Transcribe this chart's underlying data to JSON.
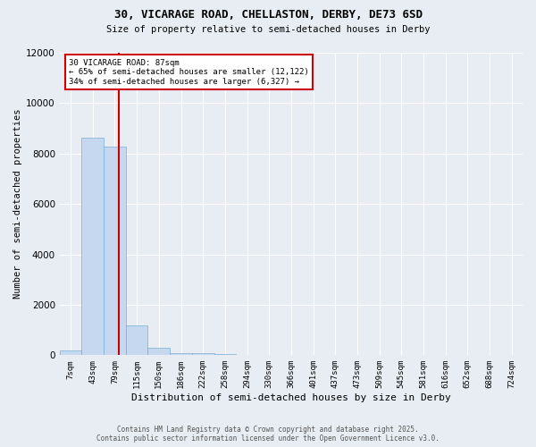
{
  "title_line1": "30, VICARAGE ROAD, CHELLASTON, DERBY, DE73 6SD",
  "title_line2": "Size of property relative to semi-detached houses in Derby",
  "xlabel": "Distribution of semi-detached houses by size in Derby",
  "ylabel": "Number of semi-detached properties",
  "categories": [
    "7sqm",
    "43sqm",
    "79sqm",
    "115sqm",
    "150sqm",
    "186sqm",
    "222sqm",
    "258sqm",
    "294sqm",
    "330sqm",
    "366sqm",
    "401sqm",
    "437sqm",
    "473sqm",
    "509sqm",
    "545sqm",
    "581sqm",
    "616sqm",
    "652sqm",
    "688sqm",
    "724sqm"
  ],
  "values": [
    200,
    8620,
    8270,
    1200,
    310,
    100,
    80,
    60,
    0,
    0,
    0,
    0,
    0,
    0,
    0,
    0,
    0,
    0,
    0,
    0,
    0
  ],
  "bar_color": "#c5d8ef",
  "bar_edge_color": "#7aadd4",
  "ylim": [
    0,
    12000
  ],
  "yticks": [
    0,
    2000,
    4000,
    6000,
    8000,
    10000,
    12000
  ],
  "red_line_color": "#cc0000",
  "red_line_x": 2.18,
  "annotation_title": "30 VICARAGE ROAD: 87sqm",
  "annotation_line1": "← 65% of semi-detached houses are smaller (12,122)",
  "annotation_line2": "34% of semi-detached houses are larger (6,327) →",
  "annotation_box_color": "#ffffff",
  "annotation_box_edge": "#cc0000",
  "footer_line1": "Contains HM Land Registry data © Crown copyright and database right 2025.",
  "footer_line2": "Contains public sector information licensed under the Open Government Licence v3.0.",
  "bg_color": "#e8edf3",
  "plot_bg_color": "#e8edf3",
  "grid_color": "#ffffff"
}
